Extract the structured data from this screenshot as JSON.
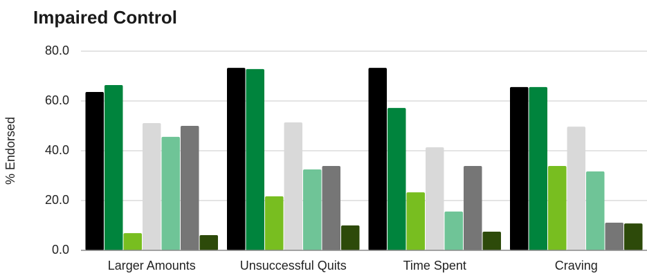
{
  "chart_data": {
    "type": "bar",
    "title": "Impaired Control",
    "y_label": "% Endorsed",
    "categories": [
      "Larger Amounts",
      "Unsuccessful Quits",
      "Time Spent",
      "Craving"
    ],
    "series": [
      {
        "color": "#000000",
        "values": [
          63.6,
          73.3,
          73.3,
          65.6
        ]
      },
      {
        "color": "#00843d",
        "values": [
          66.4,
          72.8,
          57.2,
          65.6
        ]
      },
      {
        "color": "#78be20",
        "values": [
          6.9,
          21.7,
          23.3,
          33.9
        ]
      },
      {
        "color": "#d9d9d9",
        "values": [
          51.1,
          51.4,
          41.4,
          49.7
        ]
      },
      {
        "color": "#6fc497",
        "values": [
          45.6,
          32.5,
          15.6,
          31.7
        ]
      },
      {
        "color": "#767676",
        "values": [
          50.0,
          33.9,
          33.9,
          11.1
        ]
      },
      {
        "color": "#2d4a0a",
        "values": [
          6.1,
          10.0,
          7.5,
          10.8
        ]
      }
    ],
    "ylim": [
      0,
      80
    ],
    "yticks": [
      {
        "value": 0,
        "label": "0.0"
      },
      {
        "value": 20,
        "label": "20.0"
      },
      {
        "value": 40,
        "label": "40.0"
      },
      {
        "value": 60,
        "label": "60.0"
      },
      {
        "value": 80,
        "label": "80.0"
      }
    ],
    "grid": true
  }
}
